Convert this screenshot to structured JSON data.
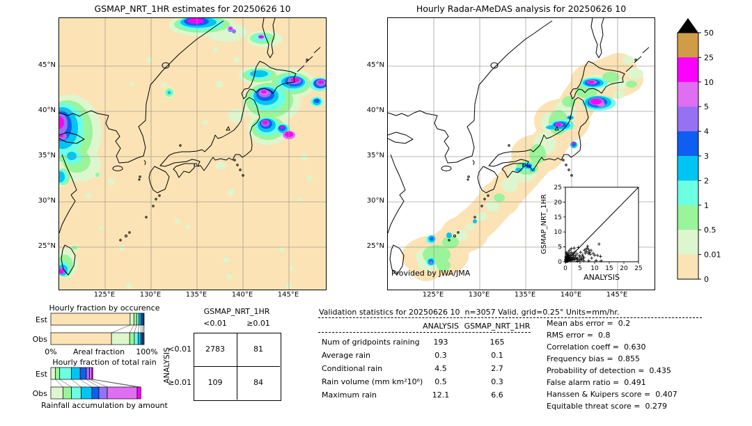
{
  "figure": {
    "left_map": {
      "title": "GSMAP_NRT_1HR estimates for 20250626 10",
      "x_ticks": [
        "125°E",
        "130°E",
        "135°E",
        "140°E",
        "145°E"
      ],
      "y_ticks": [
        "45°N",
        "40°N",
        "35°N",
        "30°N",
        "25°N"
      ]
    },
    "right_map": {
      "title": "Hourly Radar-AMeDAS analysis for 20250626 10",
      "credit": "Provided by JWA/JMA",
      "x_ticks": [
        "125°E",
        "130°E",
        "135°E",
        "140°E",
        "145°E"
      ],
      "y_ticks": [
        "45°N",
        "40°N",
        "35°N",
        "30°N",
        "25°N"
      ]
    }
  },
  "chart_data": {
    "colorbar": {
      "type": "colorbar",
      "orientation": "vertical",
      "units": "mm/hr",
      "tick_labels_top_to_bottom": [
        "50",
        "25",
        "10",
        "5",
        "4",
        "3",
        "2",
        "1",
        "0.5",
        "0.01",
        "0"
      ],
      "colors_top_to_bottom": [
        "#d09c46",
        "#fb00fb",
        "#e06ef2",
        "#9672f2",
        "#0f5ef2",
        "#00c4f2",
        "#6cffe2",
        "#99f49a",
        "#ddf6ce",
        "#fbe3b5"
      ],
      "overflow_color": "#000000"
    },
    "occurrence_chart": {
      "type": "bar",
      "title": "Hourly fraction by occurence",
      "rows": [
        "Est",
        "Obs"
      ],
      "xlabel_left": "0%",
      "xlabel_center": "Areal fraction",
      "xlabel_right": "100%",
      "categories": [
        "0",
        "0.01-0.5",
        "0.5-1",
        "1-2",
        "2-3",
        "3-4",
        "4-5",
        "5-25"
      ],
      "colors": [
        "#fbe3b5",
        "#ddf6ce",
        "#99f49a",
        "#6cffe2",
        "#00c4f2",
        "#0f5ef2",
        "#9672f2",
        "#fb00fb"
      ],
      "est_fractions": [
        0.85,
        0.04,
        0.03,
        0.025,
        0.022,
        0.018,
        0.009,
        0.006
      ],
      "obs_fractions": [
        0.65,
        0.195,
        0.05,
        0.04,
        0.03,
        0.018,
        0.01,
        0.007
      ]
    },
    "total_rain_chart": {
      "type": "bar",
      "title": "Hourly fraction of total rain",
      "rows": [
        "Est",
        "Obs"
      ],
      "footer": "Rainfall accumulation by amount",
      "categories": [
        "0.01-0.5",
        "0.5-1",
        "1-2",
        "2-3",
        "3-4",
        "4-5",
        "5-10",
        "10-25"
      ],
      "colors": [
        "#ddf6ce",
        "#99f49a",
        "#6cffe2",
        "#00c4f2",
        "#0f5ef2",
        "#9672f2",
        "#e06ef2",
        "#fb00fb"
      ],
      "est_fractions": [
        0.05,
        0.045,
        0.125,
        0.095,
        0.065,
        0.035,
        0.025,
        0.01
      ],
      "obs_fractions": [
        0.13,
        0.09,
        0.105,
        0.115,
        0.075,
        0.09,
        0.32,
        0.04
      ]
    },
    "contingency_table": {
      "type": "table",
      "col_group_label": "GSMAP_NRT_1HR",
      "row_group_label": "ANALYSIS",
      "col_headers": [
        "<0.01",
        "≥0.01"
      ],
      "row_headers": [
        "<0.01",
        "≥0.01"
      ],
      "values": [
        [
          2783,
          81
        ],
        [
          109,
          84
        ]
      ]
    },
    "scatter_inset": {
      "type": "scatter",
      "xlabel": "ANALYSIS",
      "ylabel": "GSMAP_NRT_1HR",
      "xlim": [
        0,
        25
      ],
      "ylim": [
        0,
        25
      ],
      "ticks": [
        0,
        5,
        10,
        15,
        20,
        25
      ],
      "marker": "+",
      "identity_line": true,
      "points": [
        [
          0.05,
          0.05
        ],
        [
          0.1,
          0.3
        ],
        [
          0.1,
          0.8
        ],
        [
          0.15,
          1.5
        ],
        [
          0.2,
          0.1
        ],
        [
          0.2,
          0.5
        ],
        [
          0.25,
          0.9
        ],
        [
          0.3,
          0.2
        ],
        [
          0.3,
          3.0
        ],
        [
          0.35,
          1.9
        ],
        [
          0.4,
          1.1
        ],
        [
          0.45,
          0.45
        ],
        [
          0.5,
          0.3
        ],
        [
          0.5,
          1.8
        ],
        [
          0.5,
          2.6
        ],
        [
          0.55,
          1.25
        ],
        [
          0.6,
          0.7
        ],
        [
          0.65,
          0.15
        ],
        [
          0.7,
          0.2
        ],
        [
          0.75,
          2.4
        ],
        [
          0.8,
          0.8
        ],
        [
          0.8,
          1.4
        ],
        [
          0.85,
          0.35
        ],
        [
          0.9,
          0.5
        ],
        [
          0.95,
          1.7
        ],
        [
          1.0,
          0.9
        ],
        [
          1.0,
          3.3
        ],
        [
          1.1,
          2.2
        ],
        [
          1.2,
          0.4
        ],
        [
          1.2,
          1.2
        ],
        [
          1.3,
          1.6
        ],
        [
          1.4,
          0.8
        ],
        [
          1.5,
          2.8
        ],
        [
          1.5,
          3.9
        ],
        [
          1.6,
          1.2
        ],
        [
          1.7,
          0.3
        ],
        [
          1.8,
          2.0
        ],
        [
          1.9,
          1.0
        ],
        [
          2.0,
          0.6
        ],
        [
          2.0,
          4.4
        ],
        [
          2.1,
          3.1
        ],
        [
          2.2,
          1.5
        ],
        [
          2.3,
          0.9
        ],
        [
          2.4,
          2.4
        ],
        [
          2.5,
          1.1
        ],
        [
          2.6,
          0.5
        ],
        [
          2.7,
          2.7
        ],
        [
          2.8,
          1.9
        ],
        [
          3.0,
          1.2
        ],
        [
          3.0,
          4.6
        ],
        [
          3.2,
          0.7
        ],
        [
          3.3,
          3.3
        ],
        [
          3.4,
          2.1
        ],
        [
          3.6,
          1.4
        ],
        [
          3.8,
          0.9
        ],
        [
          4.0,
          2.6
        ],
        [
          4.1,
          0.2
        ],
        [
          4.2,
          1.1
        ],
        [
          4.4,
          4.8
        ],
        [
          4.6,
          0.6
        ],
        [
          4.8,
          2.0
        ],
        [
          5.0,
          0.5
        ],
        [
          5.0,
          1.5
        ],
        [
          5.2,
          3.2
        ],
        [
          5.5,
          0.8
        ],
        [
          5.6,
          1.0
        ],
        [
          5.8,
          2.3
        ],
        [
          6.0,
          1.8
        ],
        [
          6.2,
          0.4
        ],
        [
          6.3,
          1.3
        ],
        [
          6.5,
          3.9
        ],
        [
          6.8,
          2.9
        ],
        [
          7.0,
          4.2
        ],
        [
          7.2,
          3.4
        ],
        [
          7.5,
          4.6
        ],
        [
          7.6,
          5.2
        ],
        [
          7.8,
          2.8
        ],
        [
          8.0,
          0.3
        ],
        [
          8.0,
          4.0
        ],
        [
          8.2,
          3.2
        ],
        [
          8.5,
          2.5
        ],
        [
          8.8,
          3.8
        ],
        [
          9.0,
          1.2
        ],
        [
          9.5,
          2.8
        ],
        [
          10.0,
          2.2
        ],
        [
          10.5,
          0.4
        ],
        [
          11.0,
          2.1
        ],
        [
          11.5,
          5.9
        ],
        [
          12.0,
          1.8
        ],
        [
          12.2,
          0.3
        ]
      ]
    },
    "validation_table": {
      "type": "table",
      "title": "Validation statistics for 20250626 10  n=3057 Valid. grid=0.25° Units=mm/hr.",
      "col_headers": [
        "ANALYSIS",
        "GSMAP_NRT_1HR"
      ],
      "rows": [
        {
          "label": "Num of gridpoints raining",
          "analysis": "193",
          "gsmap": "165"
        },
        {
          "label": "Average rain",
          "analysis": "0.3",
          "gsmap": "0.1"
        },
        {
          "label": "Conditional rain",
          "analysis": "4.5",
          "gsmap": "2.7"
        },
        {
          "label": "Rain volume (mm km²10⁶)",
          "analysis": "0.5",
          "gsmap": "0.3"
        },
        {
          "label": "Maximum rain",
          "analysis": "12.1",
          "gsmap": "6.6"
        }
      ]
    },
    "score_stats": {
      "type": "list",
      "items": [
        {
          "label": "Mean abs error",
          "value": "0.2"
        },
        {
          "label": "RMS error",
          "value": "0.8"
        },
        {
          "label": "Correlation coeff",
          "value": "0.630"
        },
        {
          "label": "Frequency bias",
          "value": "0.855"
        },
        {
          "label": "Probability of detection",
          "value": "0.435"
        },
        {
          "label": "False alarm ratio",
          "value": "0.491"
        },
        {
          "label": "Hanssen & Kuipers score",
          "value": "0.407"
        },
        {
          "label": "Equitable threat score",
          "value": "0.279"
        }
      ]
    }
  }
}
